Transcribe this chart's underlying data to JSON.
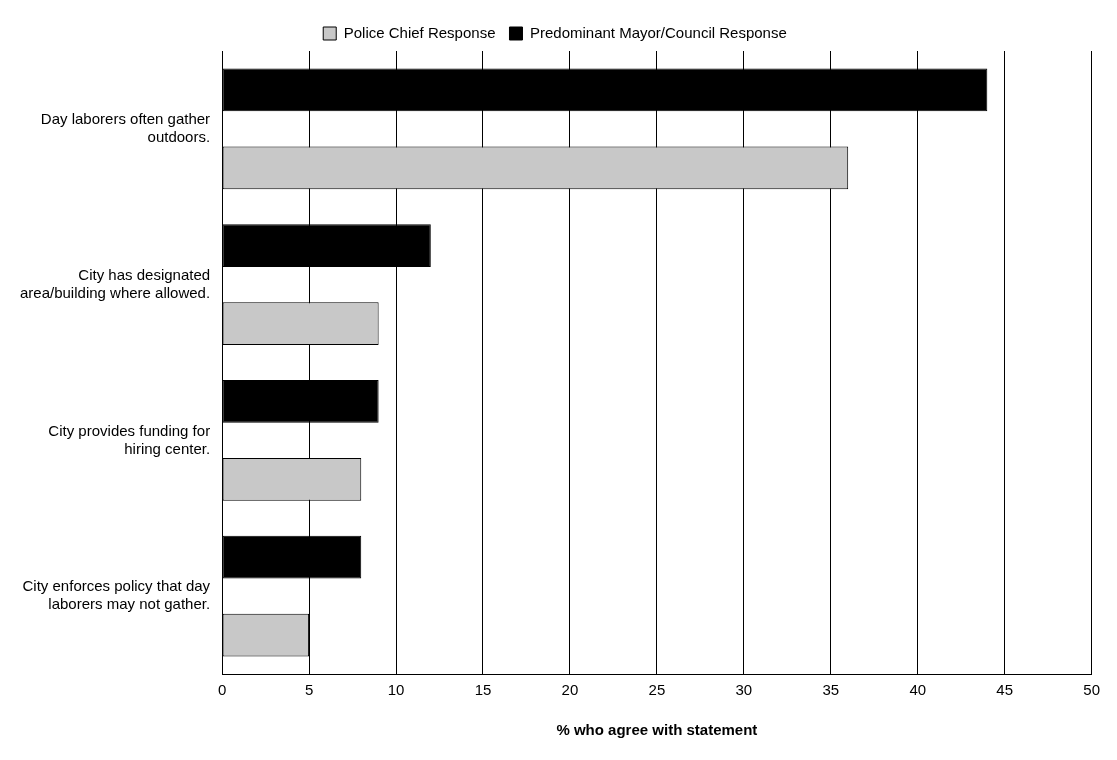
{
  "chart_data": {
    "type": "bar",
    "orientation": "horizontal",
    "xlabel": "% who agree with statement",
    "categories": [
      "Day laborers often gather outdoors.",
      "City has designated area/building where allowed.",
      "City provides funding for hiring center.",
      "City enforces policy that day laborers may not gather."
    ],
    "series": [
      {
        "name": "Police Chief Response",
        "color": "#c8c8c8",
        "values": [
          36,
          9,
          8,
          5
        ]
      },
      {
        "name": "Predominant Mayor/Council Response",
        "color": "#000000",
        "values": [
          44,
          12,
          9,
          8
        ]
      }
    ],
    "xlim": [
      0,
      50
    ],
    "xticks": [
      0,
      5,
      10,
      15,
      20,
      25,
      30,
      35,
      40,
      45,
      50
    ],
    "grid": "x",
    "legend": "top"
  }
}
